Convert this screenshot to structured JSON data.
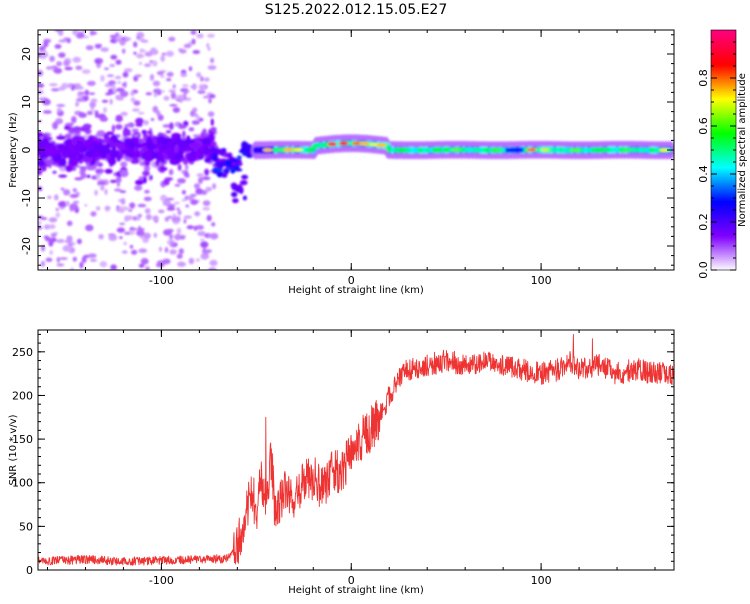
{
  "figure": {
    "title": "S125.2022.012.15.05.E27"
  },
  "chart_data": [
    {
      "type": "heatmap",
      "name": "spectrogram",
      "xlabel": "Height of straight line (km)",
      "ylabel": "Frequency (Hz)",
      "xlim": [
        -165,
        170
      ],
      "ylim": [
        -25,
        25
      ],
      "xticks": [
        -100,
        0,
        100
      ],
      "yticks": [
        -20,
        -10,
        0,
        10,
        20
      ],
      "grid": false,
      "colorbar": {
        "label": "Normalized spectral amplitude",
        "range": [
          0,
          1
        ],
        "ticks": [
          0.0,
          0.2,
          0.4,
          0.6,
          0.8
        ],
        "tick_labels": [
          "0.0",
          "0.2",
          "0.4",
          "0.6",
          "0.8"
        ],
        "colormap": "gist_rainbow_r",
        "stops": [
          "#ffffff",
          "#8000ff",
          "#0000ff",
          "#00ffff",
          "#00ff00",
          "#ffff00",
          "#ff0000",
          "#ff0080"
        ]
      },
      "features": {
        "noise_region_x": [
          -165,
          -72
        ],
        "noise_region_y": [
          -25,
          25
        ],
        "dense_band_y": [
          -6,
          5
        ],
        "transition_x": [
          -72,
          -50
        ],
        "line_frequency": 0,
        "line_start_x": -50,
        "line_end_x": 168
      }
    },
    {
      "type": "line",
      "name": "snr",
      "xlabel": "Height of straight line (km)",
      "ylabel": "SNR (10 * v/v)",
      "xlim": [
        -165,
        170
      ],
      "ylim": [
        0,
        275
      ],
      "xticks": [
        -100,
        0,
        100
      ],
      "yticks": [
        0,
        50,
        100,
        150,
        200,
        250
      ],
      "grid": false,
      "series": [
        {
          "color": "#ee3333",
          "x": [
            -165,
            -140,
            -120,
            -100,
            -80,
            -65,
            -60,
            -55,
            -52,
            -50,
            -48,
            -45,
            -42,
            -40,
            -35,
            -30,
            -25,
            -20,
            -15,
            -10,
            -5,
            0,
            5,
            10,
            15,
            20,
            25,
            30,
            40,
            50,
            60,
            70,
            80,
            90,
            100,
            110,
            115,
            120,
            125,
            130,
            140,
            150,
            160,
            170
          ],
          "y": [
            10,
            12,
            10,
            11,
            12,
            13,
            25,
            70,
            90,
            60,
            110,
            80,
            130,
            60,
            95,
            85,
            100,
            105,
            95,
            115,
            110,
            135,
            150,
            160,
            175,
            200,
            220,
            230,
            235,
            240,
            235,
            238,
            235,
            230,
            225,
            230,
            240,
            230,
            230,
            235,
            225,
            230,
            225,
            225
          ]
        }
      ],
      "spikes": [
        {
          "x": -45,
          "y": 175
        },
        {
          "x": 117,
          "y": 270
        },
        {
          "x": 127,
          "y": 265
        }
      ]
    }
  ]
}
